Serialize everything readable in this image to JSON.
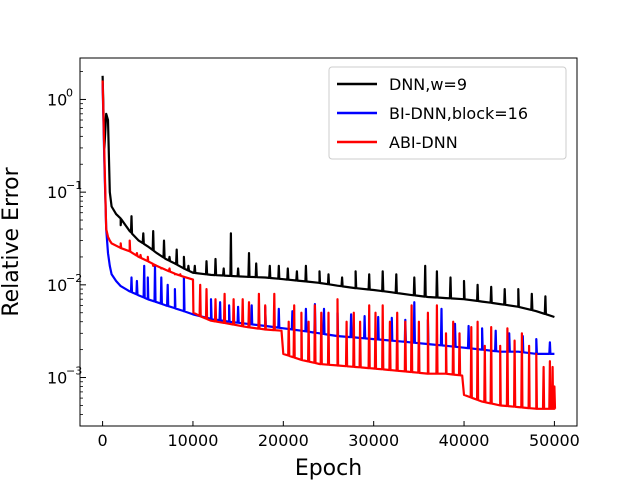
{
  "chart_data": {
    "type": "line",
    "title": "",
    "xlabel": "Epoch",
    "ylabel": "Relative Error",
    "xlim": [
      -2500,
      52500
    ],
    "ylim": [
      0.0003,
      2.8
    ],
    "yscale": "log",
    "x_ticks": [
      0,
      10000,
      20000,
      30000,
      40000,
      50000
    ],
    "x_tick_labels": [
      "0",
      "10000",
      "20000",
      "30000",
      "40000",
      "50000"
    ],
    "y_ticks": [
      0.001,
      0.01,
      0.1,
      1
    ],
    "y_tick_labels": [
      "10",
      "10",
      "10",
      "10"
    ],
    "y_tick_exponents": [
      "−3",
      "−2",
      "−1",
      "0"
    ],
    "legend_position": "upper-right",
    "series": [
      {
        "name": "DNN,w=9",
        "color": "#000000",
        "points": [
          [
            0,
            1.8
          ],
          [
            200,
            0.3
          ],
          [
            400,
            0.7
          ],
          [
            600,
            0.6
          ],
          [
            800,
            0.1
          ],
          [
            1000,
            0.07
          ],
          [
            1500,
            0.058
          ],
          [
            2000,
            0.052
          ],
          [
            3000,
            0.038
          ],
          [
            4000,
            0.03
          ],
          [
            5000,
            0.026
          ],
          [
            6000,
            0.022
          ],
          [
            7000,
            0.019
          ],
          [
            8000,
            0.017
          ],
          [
            9000,
            0.015
          ],
          [
            10000,
            0.0135
          ],
          [
            12000,
            0.0128
          ],
          [
            14000,
            0.0125
          ],
          [
            16000,
            0.0122
          ],
          [
            18000,
            0.012
          ],
          [
            20000,
            0.0115
          ],
          [
            22000,
            0.011
          ],
          [
            24000,
            0.0105
          ],
          [
            26000,
            0.0098
          ],
          [
            28000,
            0.0092
          ],
          [
            30000,
            0.0088
          ],
          [
            32000,
            0.0083
          ],
          [
            34000,
            0.0078
          ],
          [
            36000,
            0.0074
          ],
          [
            38000,
            0.0072
          ],
          [
            40000,
            0.007
          ],
          [
            42000,
            0.0066
          ],
          [
            44000,
            0.0062
          ],
          [
            46000,
            0.0058
          ],
          [
            48000,
            0.0052
          ],
          [
            50000,
            0.0045
          ]
        ],
        "spikes": [
          [
            2000,
            0.044
          ],
          [
            3200,
            0.055
          ],
          [
            4500,
            0.036
          ],
          [
            5600,
            0.038
          ],
          [
            6800,
            0.03
          ],
          [
            7400,
            0.02
          ],
          [
            8200,
            0.024
          ],
          [
            9000,
            0.02
          ],
          [
            9500,
            0.016
          ],
          [
            10200,
            0.016
          ],
          [
            11500,
            0.018
          ],
          [
            12500,
            0.019
          ],
          [
            13400,
            0.015
          ],
          [
            14200,
            0.036
          ],
          [
            15000,
            0.015
          ],
          [
            16200,
            0.022
          ],
          [
            17000,
            0.017
          ],
          [
            18500,
            0.016
          ],
          [
            19500,
            0.016
          ],
          [
            20500,
            0.015
          ],
          [
            21500,
            0.014
          ],
          [
            22500,
            0.016
          ],
          [
            24000,
            0.014
          ],
          [
            25000,
            0.013
          ],
          [
            26500,
            0.012
          ],
          [
            28000,
            0.014
          ],
          [
            29500,
            0.013
          ],
          [
            31000,
            0.014
          ],
          [
            32500,
            0.013
          ],
          [
            34500,
            0.012
          ],
          [
            35700,
            0.016
          ],
          [
            37000,
            0.014
          ],
          [
            38500,
            0.012
          ],
          [
            40000,
            0.011
          ],
          [
            41500,
            0.01
          ],
          [
            43000,
            0.0095
          ],
          [
            44500,
            0.009
          ],
          [
            46000,
            0.009
          ],
          [
            47500,
            0.008
          ],
          [
            49000,
            0.0075
          ]
        ]
      },
      {
        "name": "BI-DNN,block=16",
        "color": "#0000ff",
        "points": [
          [
            0,
            1.5
          ],
          [
            200,
            0.2
          ],
          [
            400,
            0.04
          ],
          [
            600,
            0.022
          ],
          [
            800,
            0.016
          ],
          [
            1000,
            0.013
          ],
          [
            1500,
            0.011
          ],
          [
            2000,
            0.0097
          ],
          [
            3000,
            0.0085
          ],
          [
            4000,
            0.0077
          ],
          [
            5000,
            0.007
          ],
          [
            6000,
            0.0065
          ],
          [
            7000,
            0.006
          ],
          [
            8000,
            0.0056
          ],
          [
            9000,
            0.0052
          ],
          [
            10000,
            0.0048
          ],
          [
            12000,
            0.0043
          ],
          [
            14000,
            0.004
          ],
          [
            16000,
            0.0038
          ],
          [
            18000,
            0.0036
          ],
          [
            20000,
            0.0034
          ],
          [
            22000,
            0.0032
          ],
          [
            24000,
            0.003
          ],
          [
            26000,
            0.0028
          ],
          [
            28000,
            0.0027
          ],
          [
            30000,
            0.0026
          ],
          [
            32000,
            0.0025
          ],
          [
            34000,
            0.0024
          ],
          [
            36000,
            0.0023
          ],
          [
            38000,
            0.0022
          ],
          [
            40000,
            0.0021
          ],
          [
            42000,
            0.002
          ],
          [
            44000,
            0.0019
          ],
          [
            46000,
            0.0019
          ],
          [
            48000,
            0.0018
          ],
          [
            50000,
            0.0018
          ]
        ],
        "spikes": [
          [
            3200,
            0.012
          ],
          [
            3800,
            0.011
          ],
          [
            4600,
            0.016
          ],
          [
            5000,
            0.012
          ],
          [
            5800,
            0.016
          ],
          [
            6500,
            0.012
          ],
          [
            7200,
            0.01
          ],
          [
            8000,
            0.009
          ],
          [
            9000,
            0.012
          ],
          [
            12000,
            0.007
          ],
          [
            13000,
            0.0065
          ],
          [
            14000,
            0.006
          ],
          [
            15000,
            0.0058
          ],
          [
            16500,
            0.006
          ],
          [
            18000,
            0.0058
          ],
          [
            19500,
            0.0055
          ],
          [
            21000,
            0.0052
          ],
          [
            22500,
            0.0055
          ],
          [
            23500,
            0.0062
          ],
          [
            24500,
            0.0055
          ],
          [
            26000,
            0.005
          ],
          [
            27500,
            0.0048
          ],
          [
            29000,
            0.0046
          ],
          [
            30500,
            0.0045
          ],
          [
            32000,
            0.0044
          ],
          [
            33500,
            0.0042
          ],
          [
            34500,
            0.0065
          ],
          [
            36000,
            0.0042
          ],
          [
            37500,
            0.0055
          ],
          [
            39000,
            0.0038
          ],
          [
            40500,
            0.0036
          ],
          [
            42000,
            0.0034
          ],
          [
            43500,
            0.0032
          ],
          [
            45000,
            0.003
          ],
          [
            46500,
            0.0028
          ],
          [
            48000,
            0.0026
          ],
          [
            49500,
            0.0024
          ]
        ]
      },
      {
        "name": "ABI-DNN",
        "color": "#ff0000",
        "points": [
          [
            0,
            1.6
          ],
          [
            200,
            0.25
          ],
          [
            400,
            0.04
          ],
          [
            600,
            0.033
          ],
          [
            800,
            0.03
          ],
          [
            1000,
            0.028
          ],
          [
            2000,
            0.025
          ],
          [
            3000,
            0.023
          ],
          [
            4000,
            0.02
          ],
          [
            5000,
            0.018
          ],
          [
            6000,
            0.016
          ],
          [
            7000,
            0.0145
          ],
          [
            8000,
            0.0132
          ],
          [
            9000,
            0.0122
          ],
          [
            10000,
            0.0114
          ],
          [
            10050,
            0.005
          ],
          [
            11000,
            0.0045
          ],
          [
            12000,
            0.0041
          ],
          [
            14000,
            0.0038
          ],
          [
            16000,
            0.0035
          ],
          [
            18000,
            0.0033
          ],
          [
            19800,
            0.0032
          ],
          [
            20000,
            0.0018
          ],
          [
            22000,
            0.00155
          ],
          [
            24000,
            0.0014
          ],
          [
            26000,
            0.00135
          ],
          [
            28000,
            0.0013
          ],
          [
            30000,
            0.00125
          ],
          [
            32000,
            0.0012
          ],
          [
            34000,
            0.00115
          ],
          [
            36000,
            0.0011
          ],
          [
            38000,
            0.0011
          ],
          [
            39800,
            0.00105
          ],
          [
            40000,
            0.00065
          ],
          [
            42000,
            0.00055
          ],
          [
            44000,
            0.0005
          ],
          [
            46000,
            0.00048
          ],
          [
            48000,
            0.00046
          ],
          [
            50000,
            0.00046
          ]
        ],
        "spikes": [
          [
            2000,
            0.028
          ],
          [
            3000,
            0.03
          ],
          [
            3800,
            0.022
          ],
          [
            4200,
            0.021
          ],
          [
            5000,
            0.02
          ],
          [
            5600,
            0.016
          ],
          [
            6500,
            0.015
          ],
          [
            7400,
            0.015
          ],
          [
            8000,
            0.013
          ],
          [
            8600,
            0.013
          ],
          [
            10800,
            0.01
          ],
          [
            11500,
            0.009
          ],
          [
            12500,
            0.007
          ],
          [
            13500,
            0.008
          ],
          [
            14500,
            0.007
          ],
          [
            15500,
            0.007
          ],
          [
            16200,
            0.0065
          ],
          [
            17300,
            0.008
          ],
          [
            18000,
            0.006
          ],
          [
            19000,
            0.008
          ],
          [
            20600,
            0.004
          ],
          [
            21200,
            0.006
          ],
          [
            22000,
            0.005
          ],
          [
            22800,
            0.004
          ],
          [
            23500,
            0.006
          ],
          [
            24200,
            0.005
          ],
          [
            25000,
            0.005
          ],
          [
            26000,
            0.007
          ],
          [
            27000,
            0.004
          ],
          [
            27800,
            0.005
          ],
          [
            28500,
            0.004
          ],
          [
            29500,
            0.006
          ],
          [
            30200,
            0.005
          ],
          [
            31000,
            0.006
          ],
          [
            31800,
            0.004
          ],
          [
            32600,
            0.005
          ],
          [
            33500,
            0.004
          ],
          [
            34200,
            0.006
          ],
          [
            35000,
            0.004
          ],
          [
            36000,
            0.005
          ],
          [
            37000,
            0.006
          ],
          [
            38000,
            0.003
          ],
          [
            38800,
            0.004
          ],
          [
            39500,
            0.003
          ],
          [
            40800,
            0.0035
          ],
          [
            41500,
            0.004
          ],
          [
            42300,
            0.0022
          ],
          [
            43000,
            0.0035
          ],
          [
            44000,
            0.0022
          ],
          [
            44800,
            0.0034
          ],
          [
            45600,
            0.0025
          ],
          [
            46400,
            0.003
          ],
          [
            47200,
            0.0022
          ],
          [
            48000,
            0.0018
          ],
          [
            48800,
            0.0013
          ],
          [
            49500,
            0.0015
          ],
          [
            49800,
            0.0013
          ],
          [
            50000,
            0.0008
          ]
        ]
      }
    ]
  }
}
